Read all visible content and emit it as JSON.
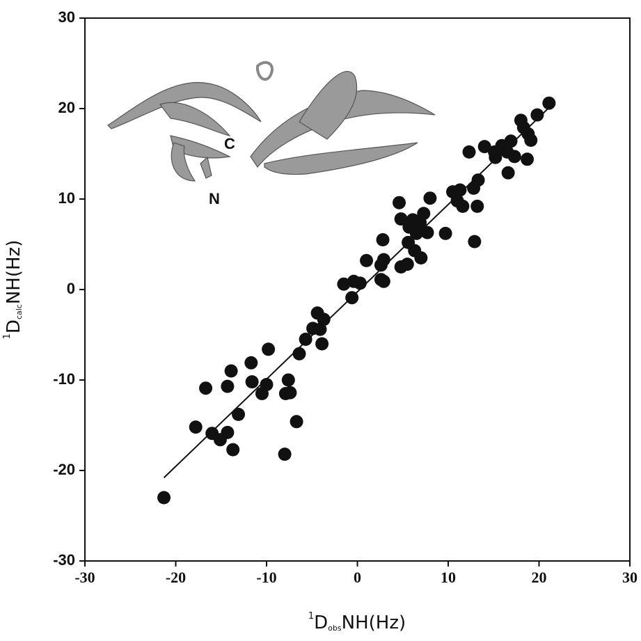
{
  "chart_data": {
    "type": "scatter",
    "xlabel": {
      "sup": "1",
      "main": "D",
      "sub": "obs",
      "rest": "NH(Hz)"
    },
    "ylabel": {
      "sup": "1",
      "main": "D",
      "sub": "calc",
      "rest": "NH(Hz)"
    },
    "annotations": [
      "C",
      "N"
    ],
    "xlim": [
      -30,
      30
    ],
    "ylim": [
      -30,
      30
    ],
    "xticks": [
      -30,
      -20,
      -10,
      0,
      10,
      20,
      30
    ],
    "yticks": [
      -30,
      -20,
      -10,
      0,
      10,
      20,
      30
    ],
    "color": "#111111",
    "x": [
      -21.3,
      -17.8,
      -16.7,
      -16.0,
      -15.1,
      -14.3,
      -14.3,
      -13.9,
      -13.7,
      -13.1,
      -11.7,
      -11.6,
      -10.5,
      -10.0,
      -9.8,
      -8.0,
      -7.9,
      -7.6,
      -7.4,
      -6.7,
      -6.4,
      -5.7,
      -4.9,
      -4.4,
      -4.1,
      -3.9,
      -3.7,
      -1.5,
      -0.6,
      -0.4,
      0.3,
      1.0,
      2.6,
      2.6,
      2.8,
      2.9,
      2.9,
      4.6,
      4.8,
      4.8,
      5.5,
      5.6,
      5.7,
      6.1,
      6.3,
      6.5,
      6.9,
      7.0,
      7.3,
      7.7,
      8.0,
      9.7,
      10.5,
      11.0,
      11.3,
      11.6,
      12.3,
      12.8,
      12.9,
      13.2,
      13.3,
      14.0,
      15.1,
      15.2,
      15.9,
      16.5,
      16.6,
      16.9,
      17.3,
      18.0,
      18.3,
      18.7,
      18.8,
      19.1,
      19.8,
      21.1
    ],
    "y": [
      -23.0,
      -15.2,
      -10.9,
      -15.9,
      -16.6,
      -15.8,
      -10.7,
      -9.0,
      -17.7,
      -13.8,
      -8.1,
      -10.2,
      -11.5,
      -10.5,
      -6.6,
      -18.2,
      -11.5,
      -10.0,
      -11.4,
      -14.6,
      -7.1,
      -5.5,
      -4.3,
      -2.6,
      -4.4,
      -6.0,
      -3.3,
      0.6,
      -0.9,
      0.9,
      0.7,
      3.2,
      2.7,
      1.1,
      5.5,
      3.3,
      0.9,
      9.6,
      2.5,
      7.8,
      2.8,
      5.2,
      6.9,
      7.7,
      4.3,
      6.2,
      7.4,
      3.5,
      8.4,
      6.3,
      10.1,
      6.2,
      10.8,
      9.8,
      11.0,
      9.2,
      15.2,
      11.2,
      5.3,
      9.2,
      12.1,
      15.8,
      15.2,
      14.6,
      15.9,
      15.2,
      12.9,
      16.4,
      14.7,
      18.7,
      17.9,
      14.4,
      17.2,
      16.5,
      19.3,
      20.6
    ],
    "fit_line": {
      "x": [
        -21.3,
        21.2
      ],
      "y": [
        -20.8,
        20.2
      ]
    }
  }
}
